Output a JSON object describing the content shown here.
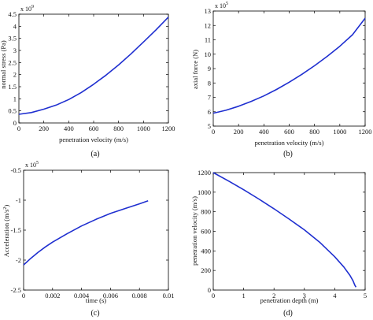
{
  "colors": {
    "line": "#1f2fd0",
    "axes": "#000000",
    "background": "#ffffff"
  },
  "chart_data": [
    {
      "type": "line",
      "caption": "(a)",
      "xlabel": "penetration velocity (m/s)",
      "ylabel": "normal stress (Pa)",
      "exponent": "x 10",
      "exponent_power": "9",
      "xlim": [
        0,
        1200
      ],
      "ylim": [
        0,
        4.5
      ],
      "xticks": [
        "0",
        "200",
        "400",
        "600",
        "800",
        "1000",
        "1200"
      ],
      "yticks": [
        "0",
        "0.5",
        "1",
        "1.5",
        "2",
        "2.5",
        "3",
        "3.5",
        "4",
        "4.5"
      ],
      "series": [
        {
          "x": [
            0,
            100,
            200,
            300,
            400,
            500,
            600,
            700,
            800,
            900,
            1000,
            1100,
            1200
          ],
          "y": [
            0.36,
            0.43,
            0.57,
            0.74,
            0.97,
            1.26,
            1.6,
            1.98,
            2.4,
            2.86,
            3.35,
            3.85,
            4.38
          ]
        }
      ]
    },
    {
      "type": "line",
      "caption": "(b)",
      "xlabel": "penetration velocity (m/s)",
      "ylabel": "axial force (N)",
      "exponent": "x 10",
      "exponent_power": "5",
      "xlim": [
        0,
        1200
      ],
      "ylim": [
        5,
        13
      ],
      "xticks": [
        "0",
        "200",
        "400",
        "600",
        "800",
        "1000",
        "1200"
      ],
      "yticks": [
        "5",
        "6",
        "7",
        "8",
        "9",
        "10",
        "11",
        "12",
        "13"
      ],
      "series": [
        {
          "x": [
            0,
            100,
            200,
            300,
            400,
            500,
            600,
            700,
            800,
            900,
            1000,
            1100,
            1200
          ],
          "y": [
            5.9,
            6.1,
            6.38,
            6.72,
            7.1,
            7.55,
            8.05,
            8.6,
            9.2,
            9.85,
            10.55,
            11.35,
            12.5
          ]
        }
      ]
    },
    {
      "type": "line",
      "caption": "(c)",
      "xlabel": "time (s)",
      "ylabel": "Acceleration (m/s",
      "ylabel_power": "2",
      "ylabel_close": ")",
      "exponent": "x 10",
      "exponent_power": "5",
      "xlim": [
        0,
        0.01
      ],
      "ylim": [
        -2.5,
        -0.5
      ],
      "xticks": [
        "0",
        "0.002",
        "0.004",
        "0.006",
        "0.008",
        "0.01"
      ],
      "yticks": [
        "-2.5",
        "-2",
        "-1.5",
        "-1",
        "-0.5"
      ],
      "series": [
        {
          "x": [
            0,
            0.0005,
            0.001,
            0.0015,
            0.002,
            0.003,
            0.004,
            0.005,
            0.006,
            0.007,
            0.008,
            0.0086
          ],
          "y": [
            -2.08,
            -1.97,
            -1.87,
            -1.78,
            -1.7,
            -1.56,
            -1.43,
            -1.32,
            -1.22,
            -1.14,
            -1.06,
            -1.01
          ]
        }
      ]
    },
    {
      "type": "line",
      "caption": "(d)",
      "xlabel": "penetration depth (m)",
      "ylabel": "penetration velocity (m/s)",
      "xlim": [
        0,
        5
      ],
      "ylim": [
        0,
        1200
      ],
      "xticks": [
        "0",
        "1",
        "2",
        "3",
        "4",
        "5"
      ],
      "yticks": [
        "0",
        "200",
        "400",
        "600",
        "800",
        "1000",
        "1200"
      ],
      "series": [
        {
          "x": [
            0,
            0.5,
            1.0,
            1.5,
            2.0,
            2.5,
            3.0,
            3.5,
            4.0,
            4.3,
            4.5,
            4.6,
            4.66,
            4.7
          ],
          "y": [
            1200,
            1115,
            1025,
            930,
            830,
            725,
            615,
            490,
            340,
            235,
            150,
            95,
            50,
            30
          ]
        }
      ]
    }
  ]
}
